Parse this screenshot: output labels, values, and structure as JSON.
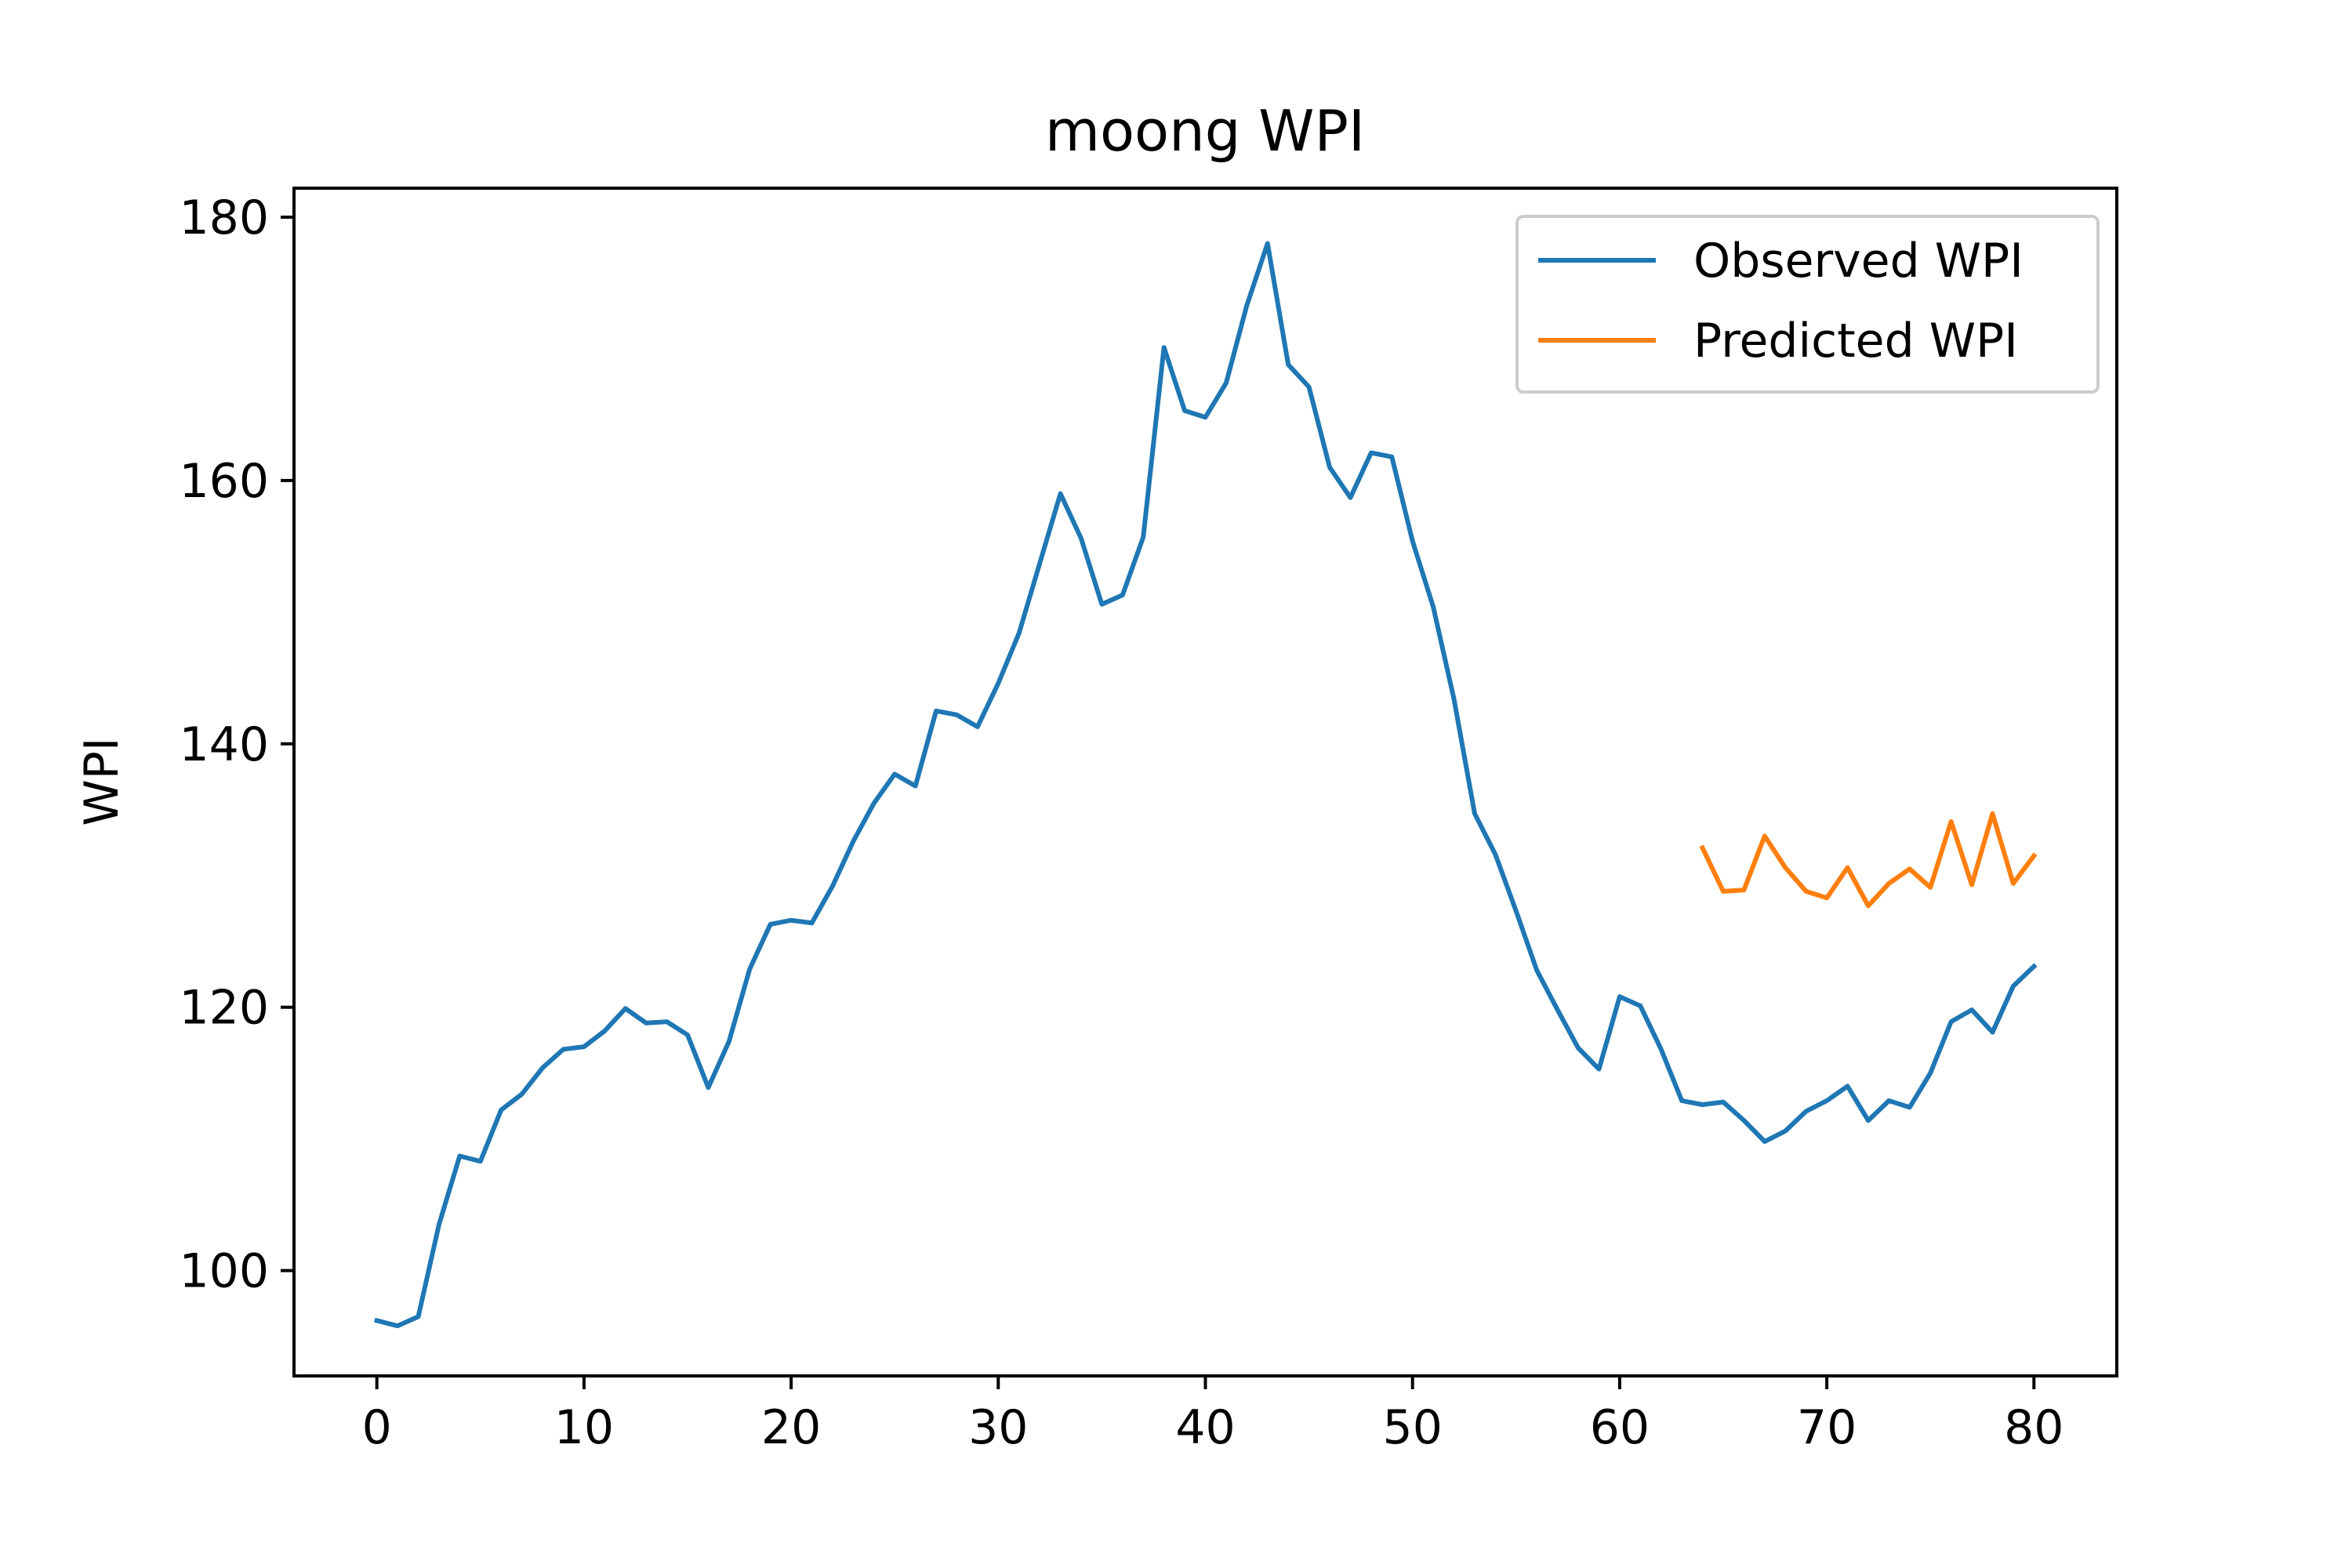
{
  "chart_data": {
    "type": "line",
    "title": "moong WPI",
    "xlabel": "",
    "ylabel": "WPI",
    "xlim": [
      -4,
      84
    ],
    "ylim": [
      92,
      182.2
    ],
    "xticks": [
      0,
      10,
      20,
      30,
      40,
      50,
      60,
      70,
      80
    ],
    "yticks": [
      100,
      120,
      140,
      160,
      180
    ],
    "grid": false,
    "legend_position": "top-right",
    "series": [
      {
        "name": "Observed WPI",
        "color": "#1f77b4",
        "x": [
          0,
          1,
          2,
          3,
          4,
          5,
          6,
          7,
          8,
          9,
          10,
          11,
          12,
          13,
          14,
          15,
          16,
          17,
          18,
          19,
          20,
          21,
          22,
          23,
          24,
          25,
          26,
          27,
          28,
          29,
          30,
          31,
          32,
          33,
          34,
          35,
          36,
          37,
          38,
          39,
          40,
          41,
          42,
          43,
          44,
          45,
          46,
          47,
          48,
          49,
          50,
          51,
          52,
          53,
          54,
          55,
          56,
          57,
          58,
          59,
          60,
          61,
          62,
          63,
          64,
          65,
          66,
          67,
          68,
          69,
          70,
          71,
          72,
          73,
          74,
          75,
          76,
          77,
          78,
          79,
          80
        ],
        "y": [
          96.2,
          95.8,
          96.5,
          103.5,
          108.7,
          108.3,
          112.2,
          113.4,
          115.4,
          116.8,
          117.0,
          118.2,
          119.9,
          118.8,
          118.9,
          117.9,
          113.9,
          117.4,
          122.9,
          126.3,
          126.6,
          126.4,
          129.2,
          132.6,
          135.5,
          137.7,
          136.8,
          142.5,
          142.2,
          141.3,
          144.6,
          148.4,
          153.7,
          159.0,
          155.6,
          150.6,
          151.3,
          155.7,
          170.1,
          165.3,
          164.8,
          167.4,
          173.3,
          178.0,
          168.8,
          167.1,
          161.0,
          158.7,
          162.1,
          161.8,
          155.4,
          150.4,
          143.4,
          134.7,
          131.6,
          127.3,
          122.8,
          119.8,
          116.9,
          115.3,
          120.8,
          120.1,
          116.8,
          112.9,
          112.6,
          112.8,
          111.4,
          109.8,
          110.6,
          112.1,
          112.9,
          114.0,
          111.4,
          112.9,
          112.4,
          115.0,
          118.9,
          119.8,
          118.1,
          121.6,
          123.1
        ]
      },
      {
        "name": "Predicted WPI",
        "color": "#ff7f0e",
        "x": [
          64,
          65,
          66,
          67,
          68,
          69,
          70,
          71,
          72,
          73,
          74,
          75,
          76,
          77,
          78,
          79,
          80
        ],
        "y": [
          132.1,
          128.8,
          128.9,
          133.0,
          130.6,
          128.8,
          128.3,
          130.6,
          127.7,
          129.4,
          130.5,
          129.1,
          134.1,
          129.3,
          134.7,
          129.4,
          131.5
        ]
      }
    ]
  }
}
